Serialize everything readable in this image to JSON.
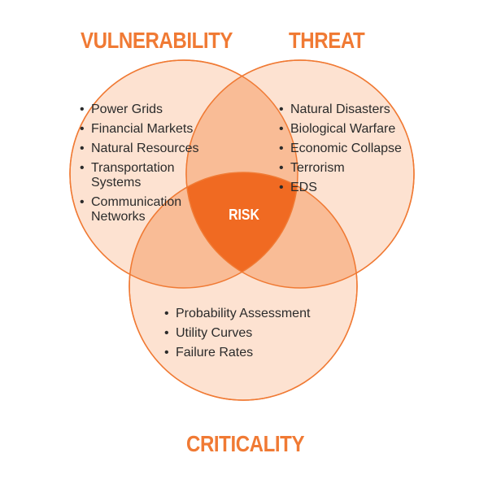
{
  "colors": {
    "accent": "#f07a34",
    "circle_fill": "#fde2d1",
    "overlap_fill": "#f9bc96",
    "center_fill": "#f06a22",
    "text": "#2b2b2b"
  },
  "vulnerability": {
    "title": "VULNERABILITY",
    "items": [
      "Power Grids",
      "Financial Markets",
      "Natural Resources",
      "Transportation Systems",
      "Communication Networks"
    ]
  },
  "threat": {
    "title": "THREAT",
    "items": [
      "Natural Disasters",
      "Biological Warfare",
      "Economic Collapse",
      "Terrorism",
      "EDS"
    ]
  },
  "criticality": {
    "title": "CRITICALITY",
    "items": [
      "Probability Assessment",
      "Utility Curves",
      "Failure Rates"
    ]
  },
  "center": {
    "label": "RISK"
  }
}
